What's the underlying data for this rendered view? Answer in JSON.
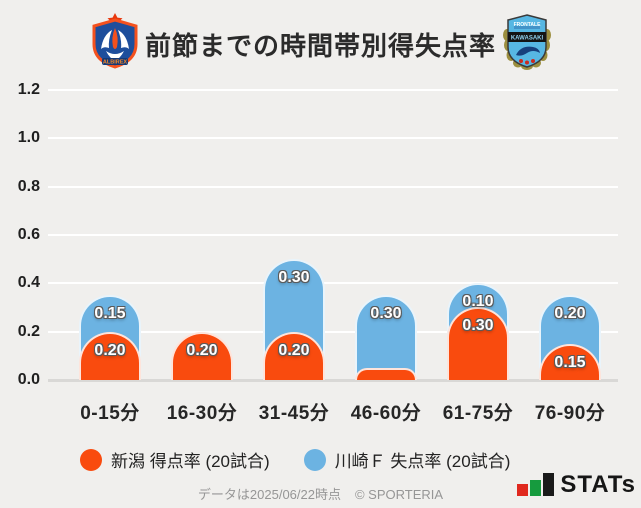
{
  "page": {
    "background": "#f0efed"
  },
  "header": {
    "title": "前節までの時間帯別得失点率",
    "home_crest": "アルビレックス新潟",
    "away_crest": "川崎フロンターレ"
  },
  "chart_data": {
    "type": "bar",
    "stacked": true,
    "title": "前節までの時間帯別得失点率",
    "categories": [
      "0-15分",
      "16-30分",
      "31-45分",
      "46-60分",
      "61-75分",
      "76-90分"
    ],
    "series": [
      {
        "name": "新潟 得点率 (20試合)",
        "color": "#f94b0e",
        "values": [
          0.2,
          0.2,
          0.2,
          0.05,
          0.3,
          0.15
        ],
        "data_labels": [
          "0.20",
          "0.20",
          "0.20",
          "",
          "0.30",
          "0.15"
        ]
      },
      {
        "name": "川崎Ｆ 失点率 (20試合)",
        "color": "#6cb3e2",
        "values": [
          0.15,
          0.0,
          0.3,
          0.3,
          0.1,
          0.2
        ],
        "data_labels": [
          "0.15",
          "",
          "0.30",
          "0.30",
          "0.10",
          "0.20"
        ]
      }
    ],
    "ylim": [
      0,
      1.2
    ],
    "yticks": [
      "0.0",
      "0.2",
      "0.4",
      "0.6",
      "0.8",
      "1.0",
      "1.2"
    ],
    "grid": true,
    "gridline_color": "#ffffff",
    "axis_color": "#d9d8d6",
    "legend_position": "bottom",
    "bar_label_color": "#ffffff"
  },
  "footer": {
    "note": "データは2025/06/22時点",
    "copyright": "© SPORTERIA",
    "logo_text": "STATs",
    "logo_colors": {
      "red": "#e0281e",
      "green": "#169b3e",
      "black": "#1a1a1a"
    }
  }
}
